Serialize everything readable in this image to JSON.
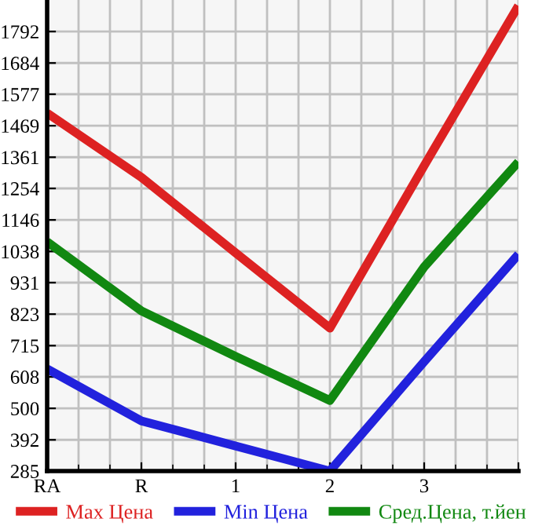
{
  "chart_data": {
    "type": "line",
    "categories": [
      "RA",
      "R",
      "1",
      "2",
      "3",
      null
    ],
    "series": [
      {
        "name": "Max Цена",
        "color": "#dd2222",
        "values": [
          1512,
          1292,
          1033,
          775,
          1332,
          1880
        ]
      },
      {
        "name": "Min Цена",
        "color": "#2222dd",
        "values": [
          635,
          457,
          371,
          285,
          660,
          1028
        ]
      },
      {
        "name": "Сред.Цена, т.йен",
        "color": "#118811",
        "values": [
          1071,
          834,
          678,
          527,
          985,
          1345
        ]
      }
    ],
    "ylim": [
      285,
      1900
    ],
    "yticks": [
      285,
      392,
      500,
      608,
      715,
      823,
      931,
      1038,
      1146,
      1254,
      1361,
      1469,
      1577,
      1684,
      1792
    ],
    "grid": true,
    "legend": "bottom",
    "marker": "none",
    "line_style": "solid"
  }
}
